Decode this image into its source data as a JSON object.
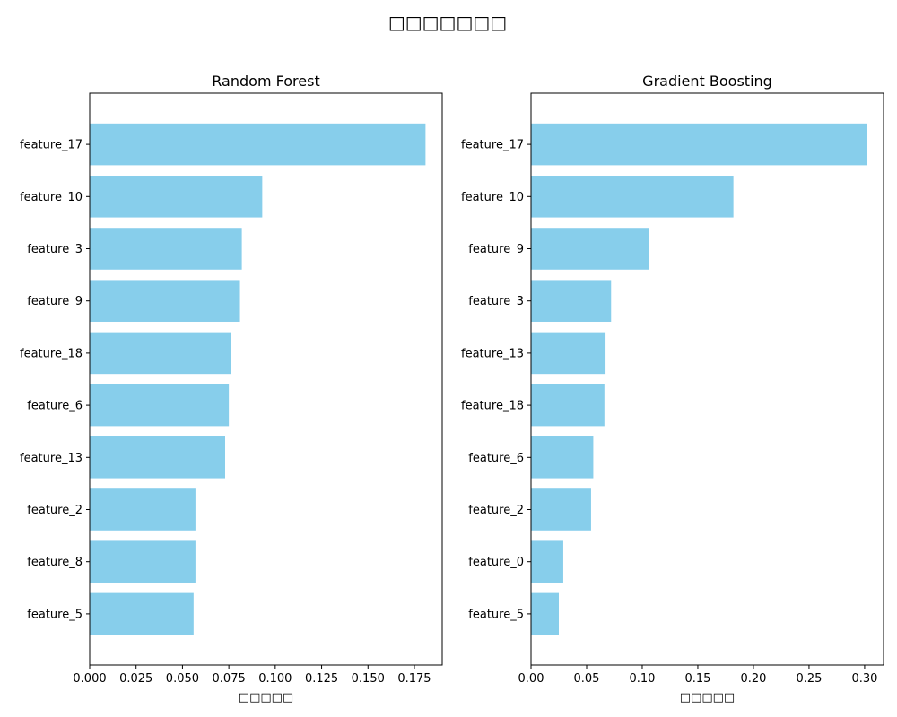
{
  "figure": {
    "title": "□□□□□□□"
  },
  "chart_data": [
    {
      "type": "bar",
      "orientation": "horizontal",
      "title": "Random Forest",
      "xlabel": "□□□□□",
      "ylabel": "",
      "xlim": [
        0,
        0.19
      ],
      "xticks": [
        "0.000",
        "0.025",
        "0.050",
        "0.075",
        "0.100",
        "0.125",
        "0.150",
        "0.175"
      ],
      "categories": [
        "feature_17",
        "feature_10",
        "feature_3",
        "feature_9",
        "feature_18",
        "feature_6",
        "feature_13",
        "feature_2",
        "feature_8",
        "feature_5"
      ],
      "values": [
        0.181,
        0.093,
        0.082,
        0.081,
        0.076,
        0.075,
        0.073,
        0.057,
        0.057,
        0.056
      ],
      "bar_color": "#87ceeb",
      "grid": false,
      "legend": "none"
    },
    {
      "type": "bar",
      "orientation": "horizontal",
      "title": "Gradient Boosting",
      "xlabel": "□□□□□",
      "ylabel": "",
      "xlim": [
        0,
        0.317
      ],
      "xticks": [
        "0.00",
        "0.05",
        "0.10",
        "0.15",
        "0.20",
        "0.25",
        "0.30"
      ],
      "categories": [
        "feature_17",
        "feature_10",
        "feature_9",
        "feature_3",
        "feature_13",
        "feature_18",
        "feature_6",
        "feature_2",
        "feature_0",
        "feature_5"
      ],
      "values": [
        0.302,
        0.182,
        0.106,
        0.072,
        0.067,
        0.066,
        0.056,
        0.054,
        0.029,
        0.025
      ],
      "bar_color": "#87ceeb",
      "grid": false,
      "legend": "none"
    }
  ]
}
